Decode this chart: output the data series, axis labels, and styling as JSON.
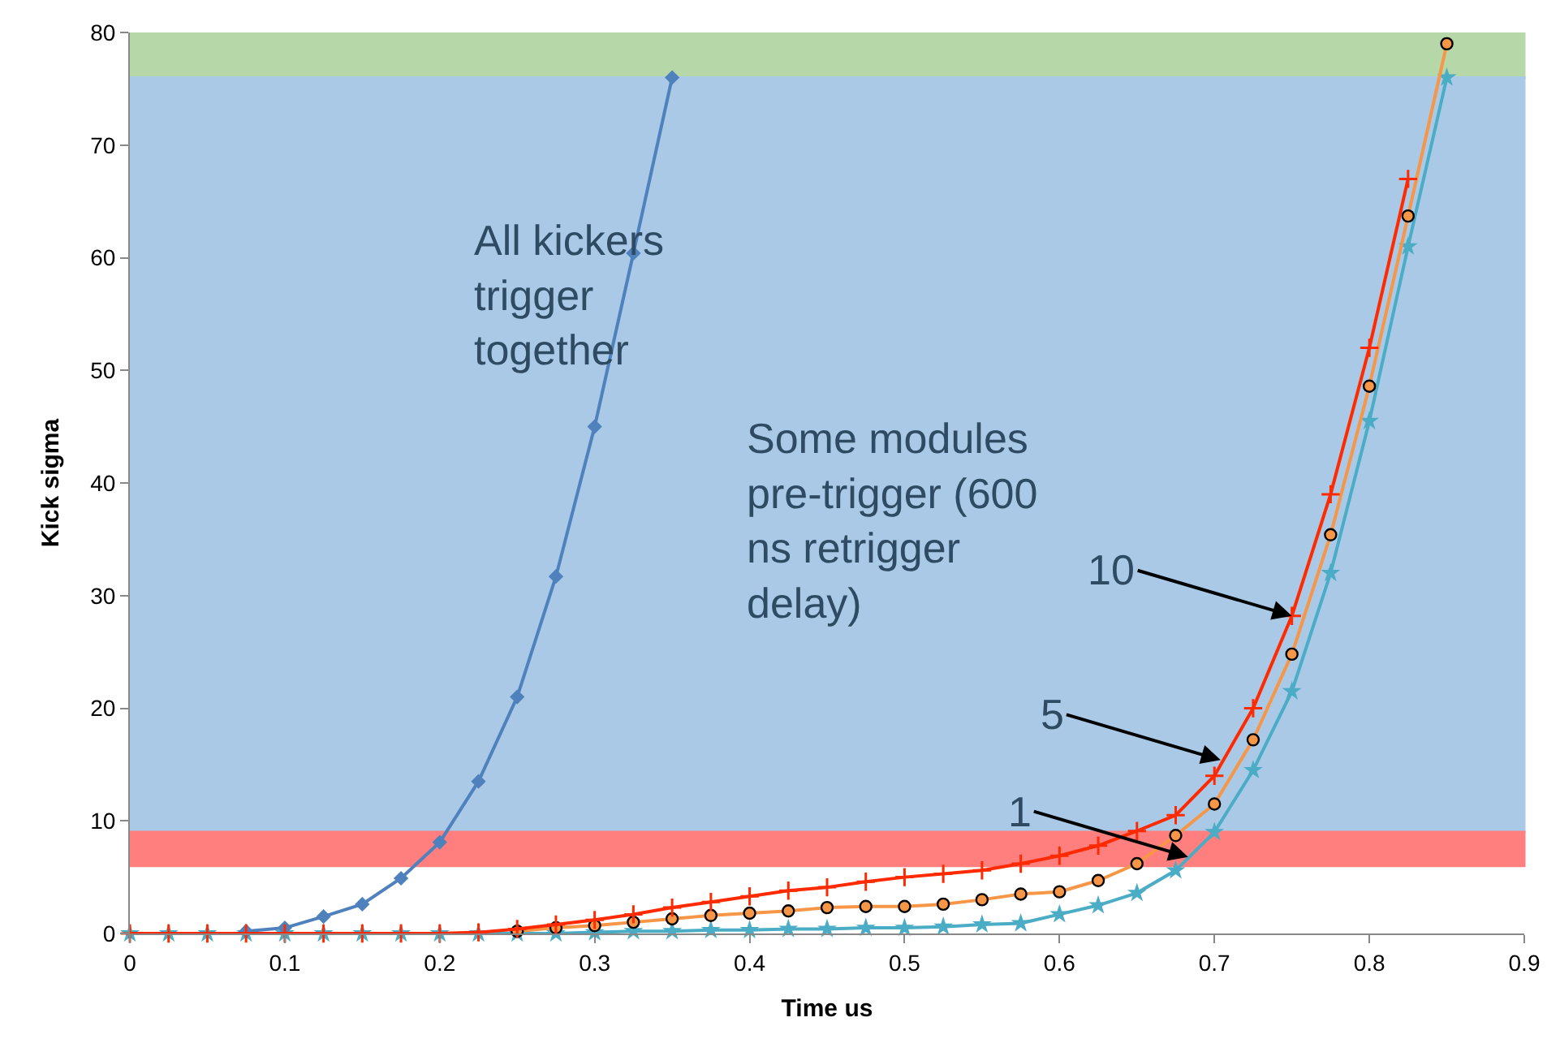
{
  "chart_data": {
    "type": "line",
    "xlabel": "Time us",
    "ylabel": "Kick sigma",
    "xlim": [
      0,
      0.9
    ],
    "xticks": [
      0,
      0.1,
      0.2,
      0.3,
      0.4,
      0.5,
      0.6,
      0.7,
      0.8,
      0.9
    ],
    "ylim": [
      0,
      80
    ],
    "yticks": [
      0,
      10,
      20,
      30,
      40,
      50,
      60,
      70,
      80
    ],
    "grid": false,
    "series": [
      {
        "color": "#4f81bd",
        "marker": "diamond",
        "x": [
          0.075,
          0.1,
          0.125,
          0.15,
          0.175,
          0.2,
          0.225,
          0.25,
          0.275,
          0.3,
          0.325,
          0.35
        ],
        "values": [
          0.2,
          0.5,
          1.5,
          2.6,
          4.9,
          8.1,
          13.5,
          21,
          31.7,
          45,
          60.4,
          76
        ]
      },
      {
        "color": "#ff2a00",
        "marker": "cross",
        "x": [
          0,
          0.025,
          0.05,
          0.075,
          0.1,
          0.125,
          0.15,
          0.175,
          0.2,
          0.225,
          0.25,
          0.275,
          0.3,
          0.325,
          0.35,
          0.375,
          0.4,
          0.425,
          0.45,
          0.475,
          0.5,
          0.525,
          0.55,
          0.575,
          0.6,
          0.625,
          0.65,
          0.675,
          0.7,
          0.725,
          0.75,
          0.775,
          0.8,
          0.825
        ],
        "values": [
          0,
          0,
          0,
          0,
          0,
          0,
          0,
          0,
          0,
          0.1,
          0.4,
          0.8,
          1.2,
          1.7,
          2.3,
          2.8,
          3.3,
          3.8,
          4.1,
          4.6,
          5.0,
          5.3,
          5.6,
          6.2,
          6.9,
          7.8,
          9.1,
          10.5,
          14,
          20,
          28.2,
          39,
          52,
          67
        ]
      },
      {
        "color": "#f79646",
        "marker": "circle",
        "x": [
          0.25,
          0.275,
          0.3,
          0.325,
          0.35,
          0.375,
          0.4,
          0.425,
          0.45,
          0.475,
          0.5,
          0.525,
          0.55,
          0.575,
          0.6,
          0.625,
          0.65,
          0.675,
          0.7,
          0.725,
          0.75,
          0.775,
          0.8,
          0.825,
          0.85
        ],
        "values": [
          0.2,
          0.5,
          0.7,
          1.0,
          1.3,
          1.6,
          1.8,
          2.0,
          2.3,
          2.4,
          2.4,
          2.6,
          3.0,
          3.5,
          3.7,
          4.7,
          6.2,
          8.7,
          11.5,
          17.2,
          24.8,
          35.4,
          48.6,
          63.7,
          79
        ]
      },
      {
        "color": "#4bacc6",
        "marker": "star",
        "x": [
          0,
          0.025,
          0.05,
          0.075,
          0.1,
          0.125,
          0.15,
          0.175,
          0.2,
          0.225,
          0.25,
          0.275,
          0.3,
          0.325,
          0.35,
          0.375,
          0.4,
          0.425,
          0.45,
          0.475,
          0.5,
          0.525,
          0.55,
          0.575,
          0.6,
          0.625,
          0.65,
          0.675,
          0.7,
          0.725,
          0.75,
          0.775,
          0.8,
          0.825,
          0.85
        ],
        "values": [
          0,
          0,
          0,
          0,
          0,
          0,
          0,
          0,
          0,
          0,
          0,
          0,
          0.1,
          0.2,
          0.2,
          0.3,
          0.3,
          0.4,
          0.4,
          0.5,
          0.5,
          0.6,
          0.8,
          0.9,
          1.7,
          2.5,
          3.6,
          5.6,
          9,
          14.5,
          21.5,
          32,
          45.5,
          61,
          76
        ]
      }
    ],
    "bands": [
      {
        "axis": "y",
        "from": 76,
        "to": 80,
        "color": "#b6d7a8"
      },
      {
        "axis": "y",
        "from": 9,
        "to": 76,
        "color": "#a9c9e6"
      },
      {
        "axis": "y",
        "from": 6,
        "to": 9,
        "color": "#ff7f7f"
      }
    ],
    "annotations": [
      "All kickers\ntrigger\ntogether",
      "Some modules\npre-trigger (600\nns retrigger\ndelay)",
      {
        "text": "10",
        "x": 0.75,
        "y": 28.2
      },
      {
        "text": "5",
        "x": 0.704,
        "y": 15.4
      },
      {
        "text": "1",
        "x": 0.683,
        "y": 6.8
      }
    ]
  }
}
